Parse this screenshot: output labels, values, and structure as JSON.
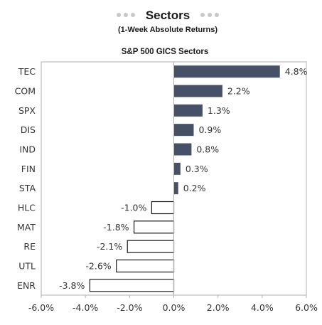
{
  "header": {
    "title": "Sectors",
    "subtitle": "(1-Week Absolute Returns)"
  },
  "colors": {
    "positive_fill": "#465066",
    "negative_fill": "#ffffff",
    "negative_stroke": "#1a1a1a",
    "decor_dots": "#c8c8c8",
    "axis": "#b0b0b0"
  },
  "chart_data": {
    "type": "bar",
    "orientation": "horizontal",
    "title": "S&P 500 GICS Sectors",
    "categories": [
      "TEC",
      "COM",
      "SPX",
      "DIS",
      "IND",
      "FIN",
      "STA",
      "HLC",
      "MAT",
      "RE",
      "UTL",
      "ENR"
    ],
    "values": [
      4.8,
      2.2,
      1.3,
      0.9,
      0.8,
      0.3,
      0.2,
      -1.0,
      -1.8,
      -2.1,
      -2.6,
      -3.8
    ],
    "value_labels": [
      "4.8%",
      "2.2%",
      "1.3%",
      "0.9%",
      "0.8%",
      "0.3%",
      "0.2%",
      "-1.0%",
      "-1.8%",
      "-2.1%",
      "-2.6%",
      "-3.8%"
    ],
    "xlim": [
      -6.0,
      6.0
    ],
    "xticks": [
      -6.0,
      -4.0,
      -2.0,
      0.0,
      2.0,
      4.0,
      6.0
    ],
    "xtick_labels": [
      "-6.0%",
      "-4.0%",
      "-2.0%",
      "0.0%",
      "2.0%",
      "4.0%",
      "6.0%"
    ],
    "xlabel": "",
    "ylabel": "",
    "grid": false,
    "legend": false
  }
}
